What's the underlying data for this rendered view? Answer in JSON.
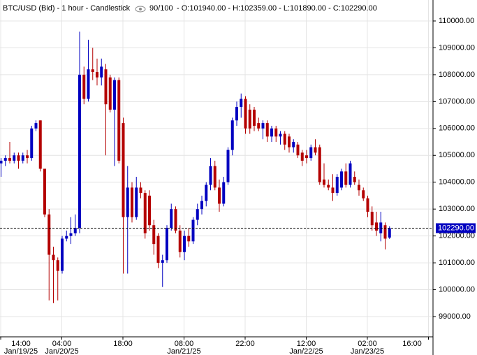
{
  "chart_data": {
    "type": "candlestick",
    "title": "BTC/USD (Bid) - 1 hour - Candlestick",
    "count_text": "90/100",
    "ohlc_text": "- O:101940.00 - H:102359.00 - L:101890.00 - C:102290.00",
    "up_color": "#0000c0",
    "down_color": "#b40000",
    "grid": true,
    "xlim": [
      -0.16,
      99.04
    ],
    "xticks": [
      {
        "value": 0,
        "label": "14:00",
        "date": "Jan/19/25"
      },
      {
        "value": 14,
        "label": "04:00",
        "date": "Jan/20/25"
      },
      {
        "value": 28,
        "label": "18:00"
      },
      {
        "value": 42,
        "label": "08:00",
        "date": "Jan/21/25"
      },
      {
        "value": 56,
        "label": "22:00"
      },
      {
        "value": 70,
        "label": "12:00",
        "date": "Jan/22/25"
      },
      {
        "value": 84,
        "label": "02:00",
        "date": "Jan/23/25"
      },
      {
        "value": 98,
        "label": "16:00"
      }
    ],
    "ylim": [
      98246,
      110780
    ],
    "yticks": [
      {
        "value": 99000,
        "label": "99000.00"
      },
      {
        "value": 100000,
        "label": "100000.00"
      },
      {
        "value": 101000,
        "label": "101000.00"
      },
      {
        "value": 102000,
        "label": "102000.00"
      },
      {
        "value": 103000,
        "label": "103000.00"
      },
      {
        "value": 104000,
        "label": "104000.00"
      },
      {
        "value": 105000,
        "label": "105000.00"
      },
      {
        "value": 106000,
        "label": "106000.00"
      },
      {
        "value": 107000,
        "label": "107000.00"
      },
      {
        "value": 108000,
        "label": "108000.00"
      },
      {
        "value": 109000,
        "label": "109000.00"
      },
      {
        "value": 110000,
        "label": "110000.00"
      }
    ],
    "last_price": {
      "value": 102290,
      "label": "102290.00"
    },
    "open": [
      104700,
      104800,
      104900,
      104800,
      105000,
      104800,
      105000,
      104900,
      106000,
      106300,
      104500,
      102800,
      101300,
      101100,
      100700,
      101900,
      102000,
      102100,
      102300,
      108000,
      107100,
      108200,
      108100,
      107900,
      108200,
      107900,
      106700,
      107800,
      106200,
      102700,
      103800,
      102700,
      103800,
      103600,
      103500,
      102400,
      102000,
      101000,
      101100,
      102300,
      103000,
      102200,
      101400,
      102000,
      101800,
      102600,
      103000,
      103300,
      103900,
      104600,
      103800,
      103200,
      104000,
      105200,
      106300,
      106800,
      107100,
      106700,
      106700,
      106200,
      106000,
      106200,
      105700,
      106000,
      105700,
      105800,
      105700,
      105300,
      105400,
      105100,
      105000,
      104900,
      105300,
      105300,
      104100,
      103900,
      103800,
      103600,
      103800,
      104400,
      103900,
      104200,
      103900,
      103700,
      103400,
      102900,
      102500,
      102100,
      102400,
      101940
    ],
    "high": [
      104900,
      105000,
      105500,
      105100,
      105100,
      105100,
      105200,
      106100,
      106300,
      106300,
      104500,
      103000,
      101600,
      101200,
      102000,
      102200,
      102700,
      102800,
      109600,
      108300,
      109300,
      109000,
      108600,
      108600,
      108400,
      108000,
      107900,
      107900,
      106400,
      104600,
      104000,
      104200,
      104000,
      103700,
      103700,
      102600,
      102100,
      101300,
      102400,
      103200,
      103100,
      102400,
      102200,
      102300,
      102700,
      103200,
      103500,
      104000,
      104900,
      104800,
      104100,
      104200,
      105300,
      106400,
      107000,
      107300,
      107200,
      106900,
      106800,
      106400,
      106300,
      106300,
      106100,
      106100,
      105900,
      105900,
      105800,
      105600,
      105500,
      105200,
      105200,
      105400,
      105600,
      105400,
      104700,
      104100,
      104300,
      104300,
      104500,
      104700,
      104800,
      104400,
      104100,
      103800,
      103500,
      103100,
      102900,
      102900,
      102500,
      102359
    ],
    "low": [
      104200,
      104600,
      104700,
      104700,
      104500,
      104700,
      104700,
      104800,
      105900,
      104400,
      102700,
      99600,
      99500,
      99600,
      100600,
      101800,
      101700,
      102000,
      102100,
      106900,
      107000,
      107800,
      107600,
      107600,
      105000,
      106600,
      104600,
      104700,
      100600,
      100600,
      102500,
      102600,
      103400,
      101900,
      102200,
      101300,
      100800,
      100100,
      101000,
      102200,
      102100,
      101200,
      101100,
      101600,
      101700,
      102400,
      102800,
      103100,
      103700,
      103700,
      102900,
      103100,
      103900,
      105000,
      106100,
      106400,
      105800,
      105800,
      105900,
      105900,
      105600,
      105500,
      105500,
      105500,
      105400,
      105200,
      105100,
      105100,
      104900,
      104600,
      104700,
      104800,
      105000,
      103900,
      103800,
      103700,
      103300,
      103500,
      103700,
      103800,
      103800,
      103900,
      103500,
      103300,
      102700,
      102200,
      102000,
      101800,
      101500,
      101890
    ],
    "close": [
      104800,
      104900,
      104800,
      105000,
      104800,
      105000,
      104900,
      106000,
      106200,
      104500,
      102800,
      101300,
      101100,
      100700,
      101900,
      102000,
      102100,
      102300,
      108000,
      107100,
      108200,
      108100,
      107900,
      108300,
      106900,
      106700,
      107800,
      104800,
      102700,
      103800,
      102700,
      103800,
      103600,
      102100,
      102400,
      101700,
      101000,
      101100,
      102300,
      103000,
      102200,
      101400,
      102000,
      101800,
      102600,
      103000,
      103300,
      103900,
      104600,
      103800,
      103200,
      104000,
      105200,
      106300,
      106800,
      107100,
      106000,
      106000,
      106100,
      106000,
      106200,
      105700,
      106000,
      105700,
      105800,
      105400,
      105300,
      105500,
      105000,
      104800,
      104900,
      105300,
      105100,
      104000,
      103900,
      103800,
      103600,
      104200,
      104400,
      103900,
      104700,
      104000,
      103700,
      103400,
      102900,
      102400,
      102200,
      102500,
      101900,
      102290
    ]
  }
}
